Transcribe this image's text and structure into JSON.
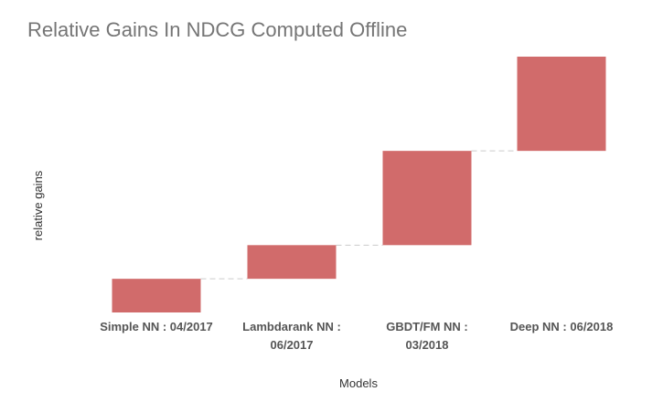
{
  "chart_data": {
    "type": "bar",
    "subtype": "waterfall",
    "title": "Relative Gains In NDCG Computed Offline",
    "xlabel": "Models",
    "ylabel": "relative gains",
    "categories": [
      [
        "Simple NN : 04/2017"
      ],
      [
        "Lambdarank NN :",
        "06/2017"
      ],
      [
        "GBDT/FM NN :",
        "03/2018"
      ],
      [
        "Deep NN : 06/2018"
      ]
    ],
    "values": [
      1.0,
      1.0,
      2.8,
      2.8
    ],
    "cumulative_start": [
      0,
      1.0,
      2.0,
      4.8
    ],
    "ylim": [
      0,
      7.6
    ],
    "grid": false,
    "legend": "none",
    "bar_color": "#d16b6b",
    "connector_color": "#cccccc"
  }
}
